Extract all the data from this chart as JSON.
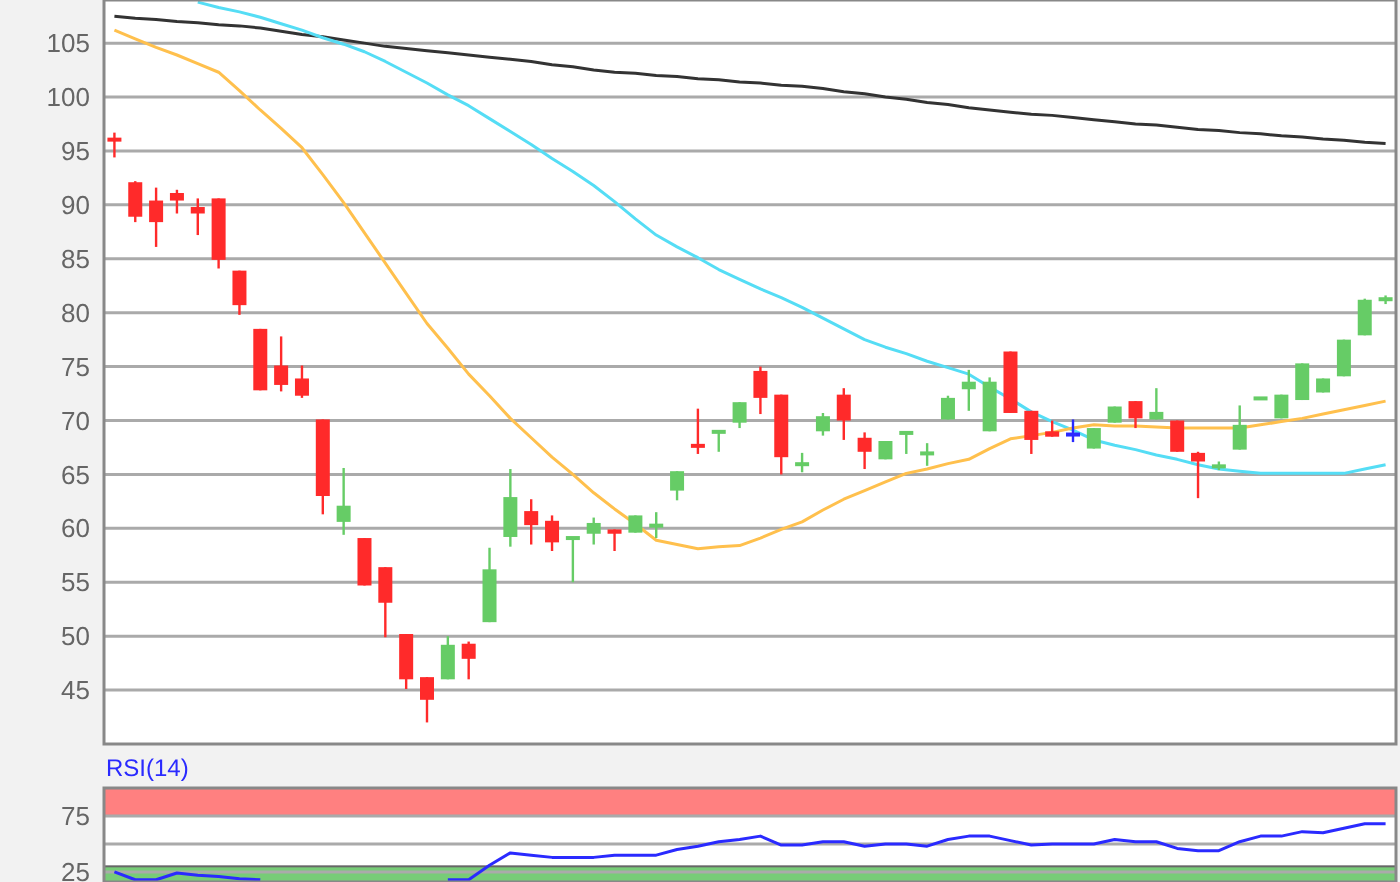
{
  "chart_data": [
    {
      "type": "candlestick",
      "categories": [
        null,
        null,
        null,
        null,
        null,
        null,
        null,
        null,
        null,
        null,
        null,
        null,
        null,
        null,
        null,
        null,
        null,
        null,
        null,
        null,
        null,
        null,
        null,
        null,
        null,
        null,
        null,
        null,
        null,
        null,
        null,
        null,
        null,
        null,
        null,
        null,
        null,
        null,
        null,
        null,
        null,
        null,
        null,
        null,
        null,
        null,
        null,
        null,
        null,
        null,
        null,
        null,
        null,
        null,
        null,
        null,
        null,
        null,
        null,
        null,
        null,
        null
      ],
      "ohlc": [
        [
          96.1,
          96.7,
          94.4,
          96.0
        ],
        [
          92.1,
          92.2,
          88.4,
          88.9
        ],
        [
          90.4,
          91.6,
          86.1,
          88.4
        ],
        [
          91.1,
          91.4,
          89.2,
          90.4
        ],
        [
          89.8,
          90.6,
          87.2,
          89.2
        ],
        [
          90.6,
          90.6,
          84.1,
          84.9
        ],
        [
          83.9,
          83.9,
          79.8,
          80.7
        ],
        [
          78.5,
          78.5,
          72.8,
          72.8
        ],
        [
          75.1,
          77.8,
          72.7,
          73.3
        ],
        [
          73.9,
          75.1,
          72.1,
          72.3
        ],
        [
          70.1,
          70.1,
          61.3,
          63.0
        ],
        [
          60.6,
          65.6,
          59.4,
          62.1
        ],
        [
          59.1,
          59.1,
          54.7,
          54.7
        ],
        [
          56.4,
          56.4,
          49.9,
          53.1
        ],
        [
          50.2,
          50.2,
          45.1,
          46.0
        ],
        [
          46.2,
          46.2,
          42.0,
          44.1
        ],
        [
          46.0,
          50.0,
          46.0,
          49.2
        ],
        [
          49.3,
          49.5,
          46.0,
          47.9
        ],
        [
          51.3,
          58.2,
          51.3,
          56.2
        ],
        [
          59.2,
          65.5,
          58.3,
          62.9
        ],
        [
          61.6,
          62.7,
          58.5,
          60.3
        ],
        [
          60.7,
          61.2,
          57.9,
          58.7
        ],
        [
          59.0,
          59.2,
          55.0,
          59.2
        ],
        [
          59.5,
          61.0,
          58.5,
          60.5
        ],
        [
          59.9,
          59.9,
          57.9,
          59.5
        ],
        [
          59.6,
          61.2,
          59.6,
          61.2
        ],
        [
          60.2,
          61.5,
          59.1,
          60.3
        ],
        [
          63.5,
          65.3,
          62.6,
          65.3
        ],
        [
          67.7,
          71.1,
          66.9,
          67.6
        ],
        [
          68.9,
          69.0,
          67.1,
          69.0
        ],
        [
          69.8,
          71.7,
          69.3,
          71.7
        ],
        [
          74.6,
          75.0,
          70.6,
          72.1
        ],
        [
          72.4,
          72.4,
          65.0,
          66.6
        ],
        [
          65.9,
          67.0,
          65.2,
          66.0
        ],
        [
          69.0,
          70.7,
          68.6,
          70.4
        ],
        [
          72.4,
          73.0,
          68.2,
          70.0
        ],
        [
          68.4,
          68.9,
          65.5,
          67.1
        ],
        [
          66.4,
          68.1,
          66.4,
          68.1
        ],
        [
          68.8,
          68.9,
          66.9,
          68.9
        ],
        [
          66.9,
          67.9,
          65.8,
          67.0
        ],
        [
          70.1,
          72.3,
          70.1,
          72.1
        ],
        [
          72.9,
          74.7,
          70.9,
          73.6
        ],
        [
          69.0,
          74.0,
          69.0,
          73.6
        ],
        [
          76.4,
          76.4,
          70.7,
          70.7
        ],
        [
          70.9,
          70.9,
          66.9,
          68.2
        ],
        [
          69.0,
          70.0,
          68.5,
          68.5
        ],
        [
          68.7,
          70.1,
          68.0,
          68.7
        ],
        [
          67.4,
          69.3,
          67.4,
          69.3
        ],
        [
          69.8,
          71.3,
          69.8,
          71.3
        ],
        [
          71.8,
          71.8,
          69.3,
          70.2
        ],
        [
          70.1,
          73.0,
          70.1,
          70.8
        ],
        [
          70.0,
          70.0,
          67.1,
          67.1
        ],
        [
          67.0,
          67.1,
          62.8,
          66.2
        ],
        [
          65.7,
          66.2,
          65.4,
          65.8
        ],
        [
          67.3,
          71.4,
          67.3,
          69.6
        ],
        [
          72.0,
          72.1,
          72.0,
          72.1
        ],
        [
          70.2,
          72.4,
          70.2,
          72.4
        ],
        [
          71.9,
          75.3,
          71.9,
          75.3
        ],
        [
          72.6,
          73.9,
          72.6,
          73.9
        ],
        [
          74.1,
          77.5,
          74.1,
          77.5
        ],
        [
          77.9,
          81.3,
          77.9,
          81.2
        ],
        [
          81.2,
          81.6,
          80.8,
          81.3
        ]
      ],
      "colors": [
        "#ff2a2a",
        "#ff2a2a",
        "#ff2a2a",
        "#ff2a2a",
        "#ff2a2a",
        "#ff2a2a",
        "#ff2a2a",
        "#ff2a2a",
        "#ff2a2a",
        "#ff2a2a",
        "#ff2a2a",
        "#66cc66",
        "#ff2a2a",
        "#ff2a2a",
        "#ff2a2a",
        "#ff2a2a",
        "#66cc66",
        "#ff2a2a",
        "#66cc66",
        "#66cc66",
        "#ff2a2a",
        "#ff2a2a",
        "#66cc66",
        "#66cc66",
        "#ff2a2a",
        "#66cc66",
        "#66cc66",
        "#66cc66",
        "#ff2a2a",
        "#66cc66",
        "#66cc66",
        "#ff2a2a",
        "#ff2a2a",
        "#66cc66",
        "#66cc66",
        "#ff2a2a",
        "#ff2a2a",
        "#66cc66",
        "#66cc66",
        "#66cc66",
        "#66cc66",
        "#66cc66",
        "#66cc66",
        "#ff2a2a",
        "#ff2a2a",
        "#ff2a2a",
        "#2a2aff",
        "#66cc66",
        "#66cc66",
        "#ff2a2a",
        "#66cc66",
        "#ff2a2a",
        "#ff2a2a",
        "#66cc66",
        "#66cc66",
        "#66cc66",
        "#66cc66",
        "#66cc66",
        "#66cc66",
        "#66cc66",
        "#66cc66",
        "#66cc66"
      ],
      "series": [
        {
          "type": "line",
          "color": "#333333",
          "values": [
            107.5,
            107.3,
            107.2,
            107.0,
            106.9,
            106.7,
            106.6,
            106.4,
            106.1,
            105.8,
            105.6,
            105.3,
            105.0,
            104.7,
            104.5,
            104.3,
            104.1,
            103.9,
            103.7,
            103.5,
            103.3,
            103.0,
            102.8,
            102.5,
            102.3,
            102.2,
            102.0,
            101.9,
            101.7,
            101.6,
            101.4,
            101.3,
            101.1,
            101.0,
            100.8,
            100.5,
            100.3,
            100.0,
            99.8,
            99.5,
            99.3,
            99.0,
            98.8,
            98.6,
            98.4,
            98.3,
            98.1,
            97.9,
            97.7,
            97.5,
            97.4,
            97.2,
            97.0,
            96.9,
            96.7,
            96.6,
            96.4,
            96.3,
            96.1,
            96.0,
            95.8,
            95.7
          ]
        },
        {
          "type": "line",
          "color": "#55ddf5",
          "values": [
            null,
            null,
            null,
            null,
            108.8,
            108.3,
            107.9,
            107.4,
            106.8,
            106.2,
            105.5,
            104.9,
            104.2,
            103.3,
            102.3,
            101.3,
            100.2,
            99.2,
            98.0,
            96.8,
            95.6,
            94.3,
            93.1,
            91.8,
            90.3,
            88.7,
            87.2,
            86.1,
            85.1,
            84.0,
            83.1,
            82.2,
            81.4,
            80.5,
            79.5,
            78.5,
            77.5,
            76.8,
            76.2,
            75.5,
            74.9,
            74.3,
            73.1,
            72.0,
            70.8,
            69.9,
            69.1,
            68.2,
            67.7,
            67.3,
            66.8,
            66.4,
            65.9,
            65.5,
            65.3,
            65.1,
            65.1,
            65.1,
            65.1,
            65.1,
            65.5,
            65.9
          ]
        },
        {
          "type": "line",
          "color": "#ffc04d",
          "values": [
            106.2,
            105.4,
            104.6,
            103.9,
            103.1,
            102.3,
            100.6,
            98.8,
            97.1,
            95.3,
            92.8,
            90.2,
            87.4,
            84.6,
            81.8,
            79.0,
            76.7,
            74.3,
            72.3,
            70.2,
            68.4,
            66.6,
            65.0,
            63.3,
            61.8,
            60.4,
            58.9,
            58.5,
            58.1,
            58.3,
            58.4,
            59.1,
            59.9,
            60.6,
            61.7,
            62.7,
            63.5,
            64.3,
            65.1,
            65.5,
            66.0,
            66.4,
            67.4,
            68.3,
            68.6,
            68.9,
            69.3,
            69.6,
            69.5,
            69.5,
            69.4,
            69.3,
            69.3,
            69.3,
            69.3,
            69.6,
            69.9,
            70.2,
            70.6,
            71.0,
            71.4,
            71.8
          ]
        }
      ],
      "ylim": [
        40,
        109
      ],
      "yticks": [
        45,
        50,
        55,
        60,
        65,
        70,
        75,
        80,
        85,
        90,
        95,
        100,
        105
      ],
      "grid": "y"
    },
    {
      "type": "line",
      "title": "RSI(14)",
      "categories": [
        null,
        null,
        null,
        null,
        null,
        null,
        null,
        null,
        null,
        null,
        null,
        null,
        null,
        null,
        null,
        null,
        null,
        null,
        null,
        null,
        null,
        null,
        null,
        null,
        null,
        null,
        null,
        null,
        null,
        null,
        null,
        null,
        null,
        null,
        null,
        null,
        null,
        null,
        null,
        null,
        null,
        null,
        null,
        null,
        null,
        null,
        null,
        null,
        null,
        null,
        null,
        null,
        null,
        null,
        null,
        null,
        null,
        null,
        null,
        null,
        null,
        null
      ],
      "series": [
        {
          "color": "#2a2aff",
          "values": [
            25,
            18,
            18,
            24,
            22,
            21,
            19,
            18,
            null,
            null,
            null,
            null,
            null,
            null,
            null,
            null,
            18,
            18,
            31,
            42,
            40,
            38,
            38,
            38,
            40,
            40,
            40,
            45,
            48,
            52,
            54,
            57,
            49,
            49,
            52,
            52,
            48,
            50,
            50,
            48,
            54,
            57,
            57,
            53,
            49,
            50,
            50,
            50,
            54,
            52,
            52,
            46,
            44,
            44,
            52,
            57,
            57,
            61,
            60,
            64,
            68,
            68
          ]
        }
      ],
      "ylim": [
        16,
        100
      ],
      "yticks": [
        25,
        {
          "value": 50,
          "label": null
        },
        75
      ],
      "grid": "y",
      "bands": [
        {
          "axis": "y",
          "from": 75,
          "to": 100,
          "color": "#ff8080"
        },
        {
          "axis": "y",
          "from": 16,
          "to": 30,
          "color": "#77cc77"
        }
      ]
    }
  ]
}
